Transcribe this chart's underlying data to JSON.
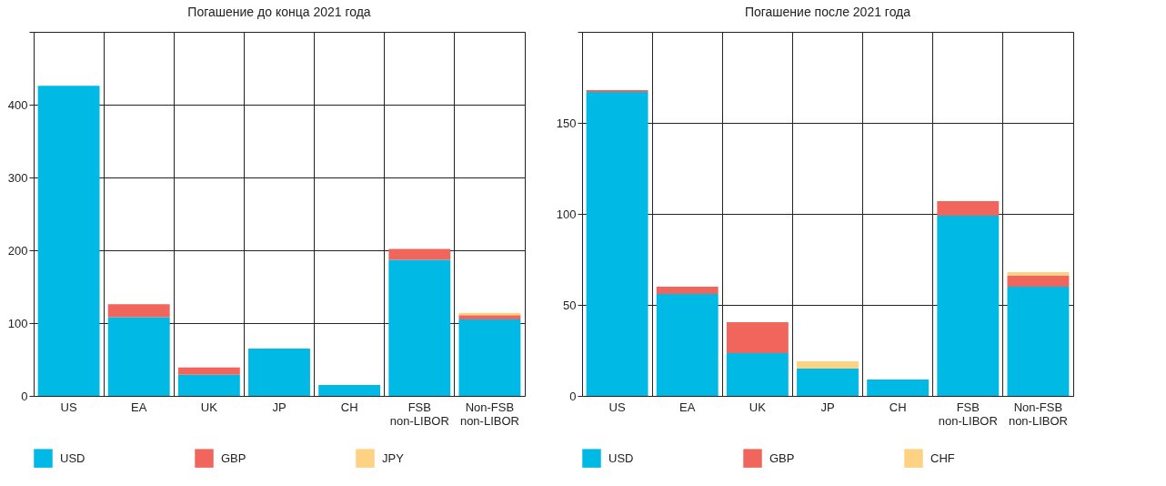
{
  "chart_data": [
    {
      "type": "bar",
      "title": "Погашение до конца 2021 года",
      "stacked": true,
      "categories": [
        "US",
        "EA",
        "UK",
        "JP",
        "CH",
        "FSB\nnon-LIBOR",
        "Non-FSB\nnon-LIBOR"
      ],
      "series": [
        {
          "name": "USD",
          "color": "#00b9e4",
          "values": [
            426,
            108,
            29,
            65,
            15,
            187,
            105
          ]
        },
        {
          "name": "GBP",
          "color": "#f0665c",
          "values": [
            0,
            18,
            10,
            0,
            0,
            15,
            6
          ]
        },
        {
          "name": "JPY",
          "color": "#fdd282",
          "values": [
            0,
            0,
            0,
            0,
            0,
            0,
            3
          ]
        }
      ],
      "ylim": [
        0,
        500
      ],
      "yticks": [
        0,
        100,
        200,
        300,
        400,
        {
          "value": 500,
          "label": null
        }
      ],
      "grid": true,
      "legend": "bottom"
    },
    {
      "type": "bar",
      "title": "Погашение после 2021 года",
      "stacked": true,
      "categories": [
        "US",
        "EA",
        "UK",
        "JP",
        "CH",
        "FSB\nnon-LIBOR",
        "Non-FSB\nnon-LIBOR"
      ],
      "series": [
        {
          "name": "USD",
          "color": "#00b9e4",
          "values": [
            167,
            56,
            23.5,
            15,
            9,
            99,
            60
          ]
        },
        {
          "name": "GBP",
          "color": "#f0665c",
          "values": [
            1,
            4,
            17,
            0,
            0,
            8,
            6
          ]
        },
        {
          "name": "CHF",
          "color": "#fdd282",
          "values": [
            0,
            0,
            0,
            4,
            0,
            0,
            2
          ]
        }
      ],
      "ylim": [
        0,
        200
      ],
      "yticks": [
        0,
        50,
        100,
        150,
        {
          "value": 200,
          "label": null
        }
      ],
      "grid": true,
      "legend": "bottom"
    }
  ]
}
